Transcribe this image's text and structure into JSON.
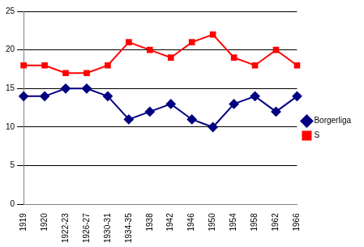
{
  "chart_data": {
    "type": "line",
    "categories": [
      "1919",
      "1920",
      "1922-23",
      "1926-27",
      "1930-31",
      "1934-35",
      "1938",
      "1942",
      "1946",
      "1950",
      "1954",
      "1958",
      "1962",
      "1966"
    ],
    "series": [
      {
        "name": "Borgerliga",
        "color": "#000080",
        "marker": "diamond",
        "values": [
          14,
          14,
          15,
          15,
          14,
          11,
          12,
          13,
          11,
          10,
          13,
          14,
          12,
          14
        ]
      },
      {
        "name": "S",
        "color": "#ff0000",
        "marker": "square",
        "values": [
          18,
          18,
          17,
          17,
          18,
          21,
          20,
          19,
          21,
          22,
          19,
          18,
          20,
          18
        ]
      }
    ],
    "ylim": [
      0,
      25
    ],
    "yticks": [
      0,
      5,
      10,
      15,
      20,
      25
    ],
    "grid": true,
    "legend": "right"
  }
}
